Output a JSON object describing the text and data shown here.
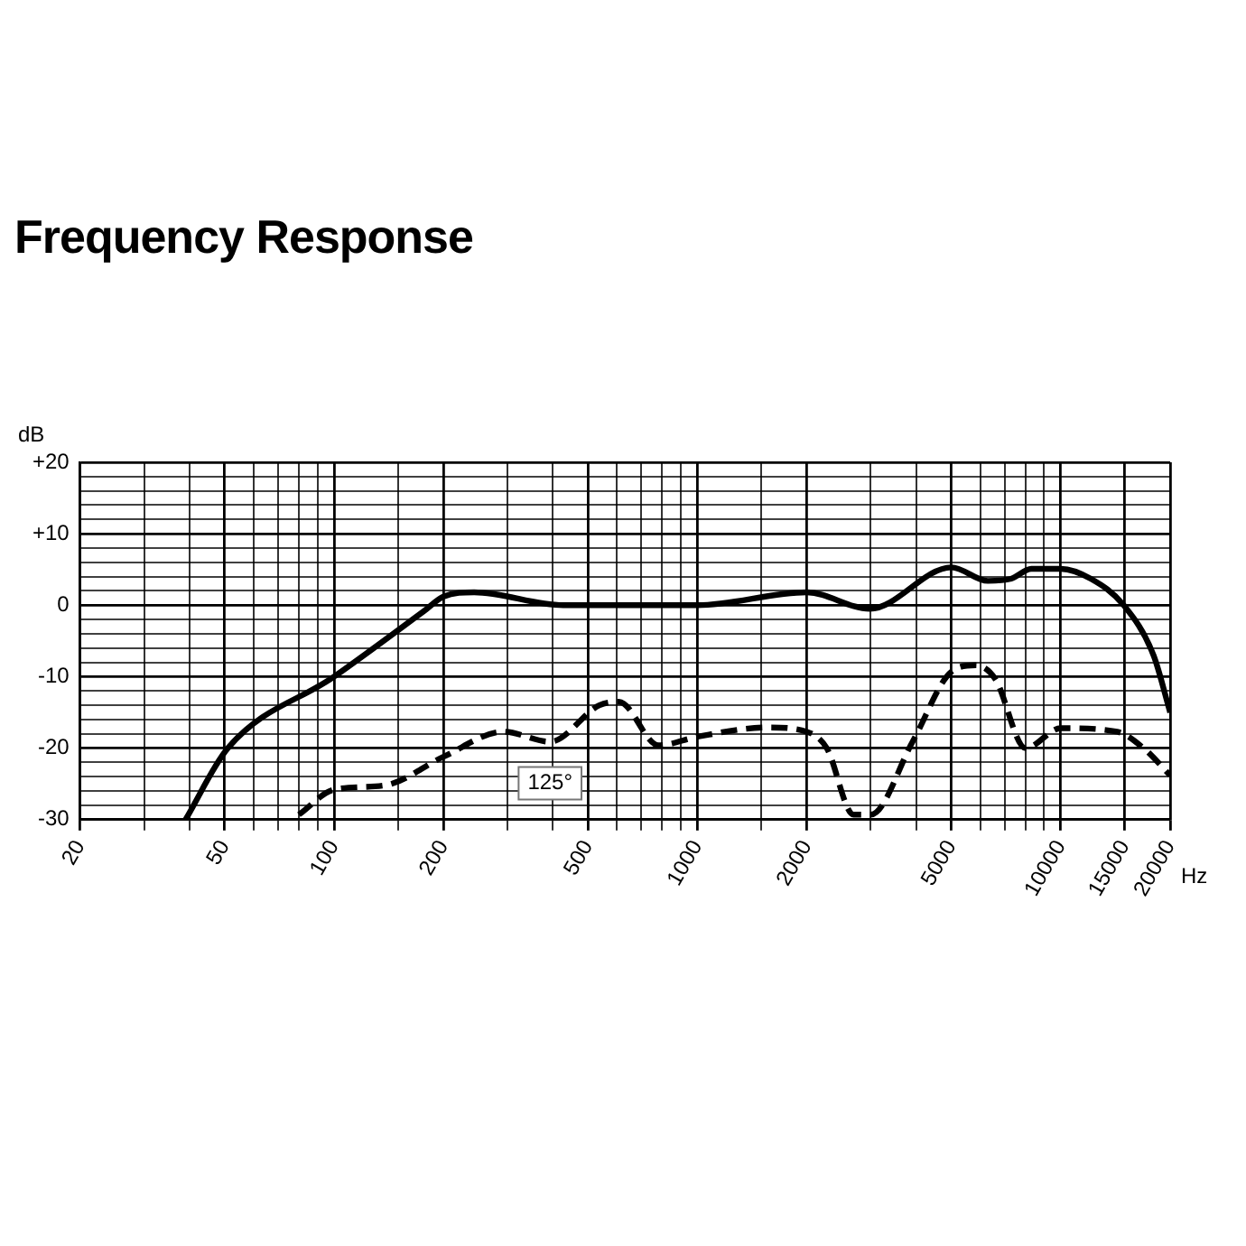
{
  "chart_data": {
    "type": "line",
    "title": "Frequency Response",
    "xlabel": "Hz",
    "ylabel": "dB",
    "log": "x",
    "grid": true,
    "legend": false,
    "marker": "none",
    "xlim": [
      20,
      20000
    ],
    "ylim": [
      -30,
      20
    ],
    "xticks": [
      20,
      {
        "value": 30,
        "label": null
      },
      {
        "value": 40,
        "label": null
      },
      50,
      {
        "value": 60,
        "label": null
      },
      {
        "value": 70,
        "label": null
      },
      {
        "value": 80,
        "label": null
      },
      {
        "value": 90,
        "label": null
      },
      100,
      {
        "value": 150,
        "label": null
      },
      200,
      {
        "value": 300,
        "label": null
      },
      {
        "value": 400,
        "label": null
      },
      500,
      {
        "value": 600,
        "label": null
      },
      {
        "value": 700,
        "label": null
      },
      {
        "value": 800,
        "label": null
      },
      {
        "value": 900,
        "label": null
      },
      1000,
      {
        "value": 1500,
        "label": null
      },
      2000,
      {
        "value": 3000,
        "label": null
      },
      {
        "value": 4000,
        "label": null
      },
      5000,
      {
        "value": 6000,
        "label": null
      },
      {
        "value": 7000,
        "label": null
      },
      {
        "value": 8000,
        "label": null
      },
      {
        "value": 9000,
        "label": null
      },
      10000,
      15000,
      20000
    ],
    "yticks": [
      -30,
      {
        "value": -28,
        "label": null
      },
      {
        "value": -26,
        "label": null
      },
      {
        "value": -24,
        "label": null
      },
      {
        "value": -22,
        "label": null
      },
      -20,
      {
        "value": -18,
        "label": null
      },
      {
        "value": -16,
        "label": null
      },
      {
        "value": -14,
        "label": null
      },
      {
        "value": -12,
        "label": null
      },
      -10,
      {
        "value": -8,
        "label": null
      },
      {
        "value": -6,
        "label": null
      },
      {
        "value": -4,
        "label": null
      },
      {
        "value": -2,
        "label": null
      },
      0,
      {
        "value": 2,
        "label": null
      },
      {
        "value": 4,
        "label": null
      },
      {
        "value": 6,
        "label": null
      },
      {
        "value": 8,
        "label": null
      },
      {
        "value": 10,
        "label": "+10"
      },
      {
        "value": 12,
        "label": null
      },
      {
        "value": 14,
        "label": null
      },
      {
        "value": 16,
        "label": null
      },
      {
        "value": 18,
        "label": null
      },
      {
        "value": 20,
        "label": "+20"
      }
    ],
    "series": [
      {
        "color": "#000000",
        "line_style": "solid",
        "x": [
          39,
          51,
          100,
          177,
          200,
          243,
          427,
          500,
          1000,
          2000,
          2980,
          5000,
          6300,
          7300,
          8300,
          10000,
          12100,
          14900,
          18000,
          20000
        ],
        "values": [
          -30,
          -20,
          -10,
          -0.8,
          1.2,
          1.8,
          0,
          0,
          0,
          1.8,
          -0.5,
          5.3,
          3.4,
          3.7,
          5.1,
          5.1,
          3.7,
          0,
          -7,
          -15
        ]
      },
      {
        "name": "125°",
        "color": "#000000",
        "line_style": "dashed",
        "x": [
          80,
          100,
          138,
          200,
          293,
          393,
          537,
          608,
          782,
          1000,
          1560,
          2000,
          2270,
          2690,
          3000,
          3910,
          5000,
          5830,
          6600,
          8000,
          10000,
          14300,
          16900,
          20000
        ],
        "values": [
          -29.3,
          -25.8,
          -25.2,
          -21.2,
          -17.7,
          -19.1,
          -14,
          -13.5,
          -19.6,
          -18.4,
          -17.1,
          -17.7,
          -20,
          -29.3,
          -29.3,
          -19.1,
          -9.3,
          -8.4,
          -10.3,
          -20,
          -17.2,
          -17.7,
          -20,
          -23.8
        ]
      }
    ]
  }
}
